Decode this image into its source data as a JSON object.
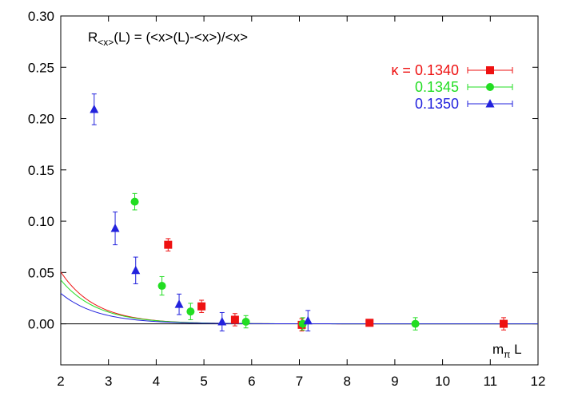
{
  "chart_data": {
    "type": "scatter",
    "title": "R<x>(L) = (<x>(L)-<x>)/<x>",
    "title_parts": {
      "base": "R",
      "sub": "<x>",
      "rest": "(L) = (<x>(L)-<x>)/<x>"
    },
    "xlabel": "mπ L",
    "xlabel_parts": {
      "base": "m",
      "sub": "π",
      "rest": " L"
    },
    "ylabel": "",
    "xlim": [
      2,
      12
    ],
    "ylim": [
      -0.04,
      0.3
    ],
    "xticks": [
      "2",
      "3",
      "4",
      "5",
      "6",
      "7",
      "8",
      "9",
      "10",
      "11",
      "12"
    ],
    "yticks": [
      "0.00",
      "0.05",
      "0.10",
      "0.15",
      "0.20",
      "0.25",
      "0.30"
    ],
    "grid": false,
    "legend_position": "top-right",
    "legend_prefix": "κ = ",
    "zero_line": true,
    "series": [
      {
        "name": "0.1340",
        "color": "#ee1111",
        "marker": "square",
        "points": [
          {
            "x": 4.25,
            "y": 0.077,
            "err": 0.006
          },
          {
            "x": 4.95,
            "y": 0.017,
            "err": 0.006
          },
          {
            "x": 5.65,
            "y": 0.004,
            "err": 0.006
          },
          {
            "x": 7.05,
            "y": -0.001,
            "err": 0.006
          },
          {
            "x": 8.47,
            "y": 0.001,
            "err": 0.002
          },
          {
            "x": 11.28,
            "y": 0.0,
            "err": 0.006
          }
        ],
        "curve": {
          "a": 0.8,
          "b": 1.38
        }
      },
      {
        "name": "0.1345",
        "color": "#22dd22",
        "marker": "circle",
        "points": [
          {
            "x": 3.55,
            "y": 0.119,
            "err": 0.008
          },
          {
            "x": 4.12,
            "y": 0.037,
            "err": 0.009
          },
          {
            "x": 4.72,
            "y": 0.012,
            "err": 0.008
          },
          {
            "x": 5.88,
            "y": 0.002,
            "err": 0.006
          },
          {
            "x": 7.07,
            "y": 0.0,
            "err": 0.006
          },
          {
            "x": 9.43,
            "y": 0.0,
            "err": 0.006
          }
        ],
        "curve": {
          "a": 0.6,
          "b": 1.32
        }
      },
      {
        "name": "0.1350",
        "color": "#2222dd",
        "marker": "triangle",
        "points": [
          {
            "x": 2.7,
            "y": 0.209,
            "err": 0.015
          },
          {
            "x": 3.14,
            "y": 0.093,
            "err": 0.016
          },
          {
            "x": 3.57,
            "y": 0.052,
            "err": 0.013
          },
          {
            "x": 4.48,
            "y": 0.019,
            "err": 0.01
          },
          {
            "x": 5.38,
            "y": 0.002,
            "err": 0.009
          },
          {
            "x": 7.18,
            "y": 0.003,
            "err": 0.01
          }
        ],
        "curve": {
          "a": 0.4,
          "b": 1.3
        }
      }
    ]
  }
}
